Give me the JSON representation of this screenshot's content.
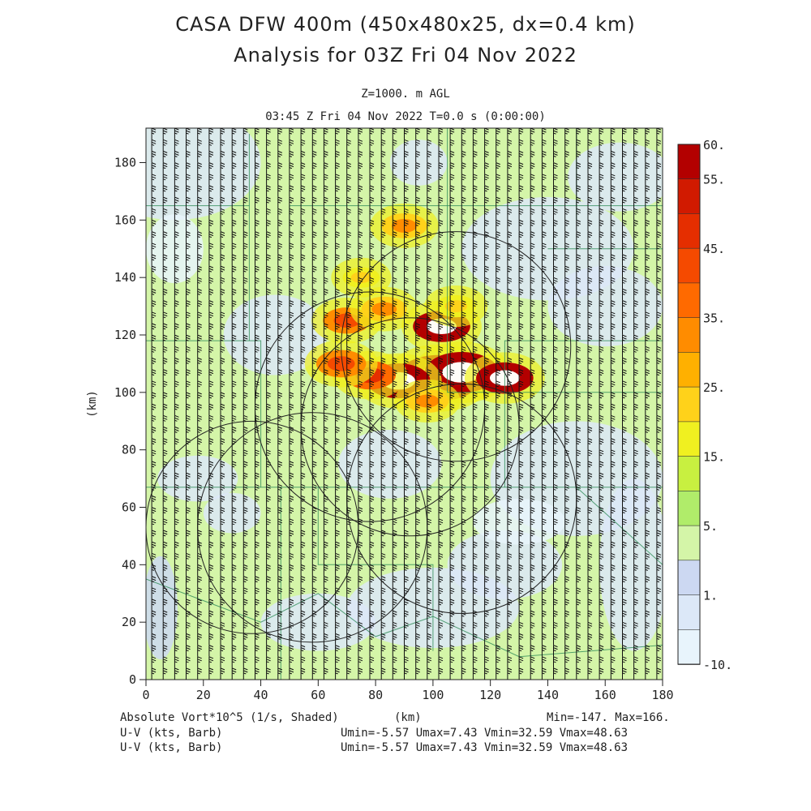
{
  "header": {
    "title_line1": "CASA DFW 400m (450x480x25, dx=0.4 km)",
    "title_line2": "Analysis for 03Z Fri 04 Nov 2022",
    "level": "Z=1000. m AGL",
    "valid_time": "03:45 Z Fri 04 Nov 2022    T=0.0 s (0:00:00)"
  },
  "footer": {
    "field_label": "Absolute Vort*10^5 (1/s, Shaded)",
    "x_unit": "(km)",
    "field_range": "Min=-147. Max=166.",
    "wind_label_1": "U-V (kts, Barb)",
    "wind_range_1": "Umin=-5.57 Umax=7.43 Vmin=32.59 Vmax=48.63",
    "wind_label_2": "U-V (kts, Barb)",
    "wind_range_2": "Umin=-5.57 Umax=7.43 Vmin=32.59 Vmax=48.63"
  },
  "chart_data": {
    "type": "heatmap",
    "xlabel": "(km)",
    "ylabel": "(km)",
    "xlim": [
      0,
      180
    ],
    "ylim": [
      0,
      192
    ],
    "xticks": [
      0,
      20,
      40,
      60,
      80,
      100,
      120,
      140,
      160,
      180
    ],
    "yticks": [
      0,
      20,
      40,
      60,
      80,
      100,
      120,
      140,
      160,
      180
    ],
    "colorbar": {
      "labels": [
        "60.",
        "55.",
        "45.",
        "35.",
        "25.",
        "15.",
        "5.",
        "1.",
        "-10."
      ],
      "colors": [
        "#b30000",
        "#d11a00",
        "#e52e00",
        "#f54a00",
        "#ff6a00",
        "#ff8c00",
        "#ffb000",
        "#ffd21a",
        "#f0f020",
        "#c8f040",
        "#b0ec6a",
        "#d4f5a8",
        "#ccd8f2",
        "#dce8f8",
        "#e8f4fc"
      ]
    },
    "vorticity_cells": [
      {
        "x": 102,
        "y": 105,
        "v": 166
      },
      {
        "x": 110,
        "y": 107,
        "v": 120
      },
      {
        "x": 88,
        "y": 104,
        "v": 80
      },
      {
        "x": 125,
        "y": 105,
        "v": 60
      },
      {
        "x": 103,
        "y": 123,
        "v": 60
      },
      {
        "x": 78,
        "y": 106,
        "v": 45
      },
      {
        "x": 68,
        "y": 110,
        "v": 40
      },
      {
        "x": 70,
        "y": 125,
        "v": 35
      },
      {
        "x": 83,
        "y": 129,
        "v": 30
      },
      {
        "x": 90,
        "y": 158,
        "v": 30
      },
      {
        "x": 98,
        "y": 97,
        "v": 25
      },
      {
        "x": 108,
        "y": 130,
        "v": 20
      },
      {
        "x": 75,
        "y": 140,
        "v": 15
      }
    ],
    "radar_rings": [
      {
        "x": 92,
        "y": 88,
        "r": 38
      },
      {
        "x": 108,
        "y": 116,
        "r": 40
      },
      {
        "x": 78,
        "y": 95,
        "r": 40
      },
      {
        "x": 37,
        "y": 53,
        "r": 37
      },
      {
        "x": 58,
        "y": 53,
        "r": 40
      },
      {
        "x": 110,
        "y": 63,
        "r": 40
      }
    ],
    "grid": false,
    "field": "Absolute Vort*10^5 (1/s, Shaded)",
    "vectors": "U-V (kts, Barb)"
  }
}
